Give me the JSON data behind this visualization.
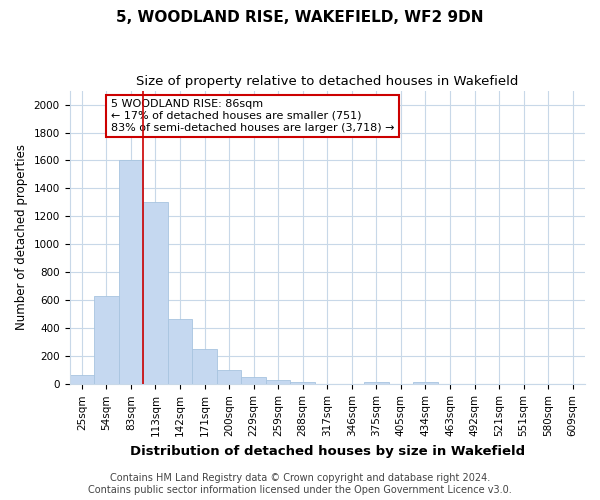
{
  "title": "5, WOODLAND RISE, WAKEFIELD, WF2 9DN",
  "subtitle": "Size of property relative to detached houses in Wakefield",
  "xlabel": "Distribution of detached houses by size in Wakefield",
  "ylabel": "Number of detached properties",
  "footer_line1": "Contains HM Land Registry data © Crown copyright and database right 2024.",
  "footer_line2": "Contains public sector information licensed under the Open Government Licence v3.0.",
  "bar_labels": [
    "25sqm",
    "54sqm",
    "83sqm",
    "113sqm",
    "142sqm",
    "171sqm",
    "200sqm",
    "229sqm",
    "259sqm",
    "288sqm",
    "317sqm",
    "346sqm",
    "375sqm",
    "405sqm",
    "434sqm",
    "463sqm",
    "492sqm",
    "521sqm",
    "551sqm",
    "580sqm",
    "609sqm"
  ],
  "bar_values": [
    65,
    630,
    1600,
    1300,
    470,
    250,
    100,
    50,
    30,
    20,
    0,
    0,
    15,
    0,
    15,
    0,
    0,
    0,
    0,
    0,
    0
  ],
  "bar_color": "#c5d8f0",
  "bar_edge_color": "#a8c4e0",
  "vline_x_index": 2,
  "vline_color": "#cc0000",
  "annotation_title": "5 WOODLAND RISE: 86sqm",
  "annotation_line1": "← 17% of detached houses are smaller (751)",
  "annotation_line2": "83% of semi-detached houses are larger (3,718) →",
  "ylim": [
    0,
    2100
  ],
  "yticks": [
    0,
    200,
    400,
    600,
    800,
    1000,
    1200,
    1400,
    1600,
    1800,
    2000
  ],
  "background_color": "#ffffff",
  "grid_color": "#c8d8e8",
  "title_fontsize": 11,
  "subtitle_fontsize": 9.5,
  "xlabel_fontsize": 9.5,
  "ylabel_fontsize": 8.5,
  "tick_fontsize": 7.5,
  "annot_fontsize": 8,
  "footer_fontsize": 7
}
